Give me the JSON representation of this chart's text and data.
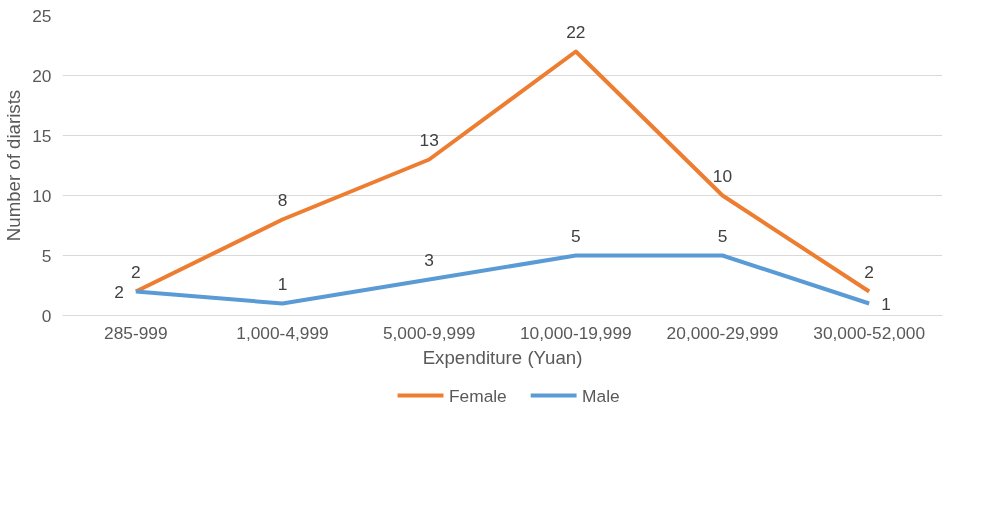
{
  "chart_data": {
    "type": "line",
    "xlabel": "Expenditure (Yuan)",
    "ylabel": "Number of diarists",
    "categories": [
      "285-999",
      "1,000-4,999",
      "5,000-9,999",
      "10,000-19,999",
      "20,000-29,999",
      "30,000-52,000"
    ],
    "series": [
      {
        "name": "Female",
        "color": "#ed7d31",
        "values": [
          2,
          8,
          13,
          22,
          10,
          2
        ]
      },
      {
        "name": "Male",
        "color": "#5b9bd5",
        "values": [
          2,
          1,
          3,
          5,
          5,
          1
        ]
      }
    ],
    "ylim": [
      0,
      25
    ],
    "yticks": [
      0,
      5,
      10,
      15,
      20,
      25
    ],
    "grid": "y",
    "legend": "bottom",
    "data_labels": true,
    "marker": "none",
    "line_style": "solid"
  }
}
